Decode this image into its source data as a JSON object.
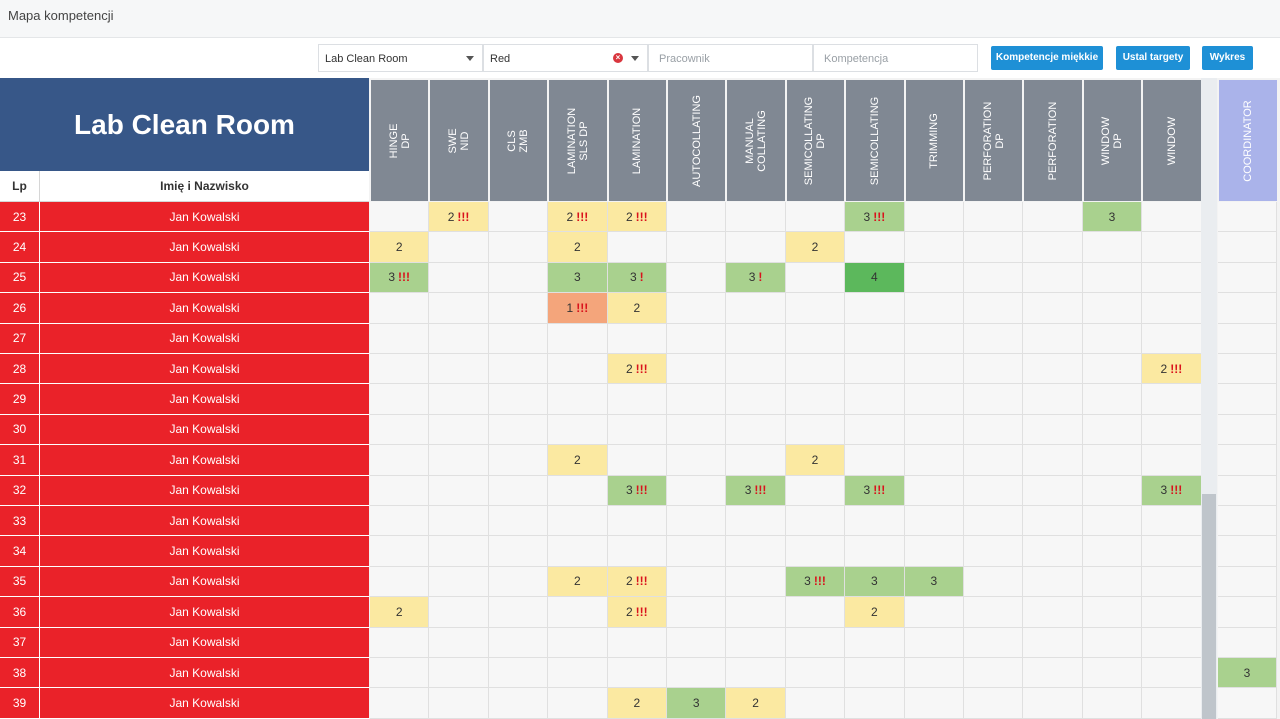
{
  "window": {
    "title": "Mapa kompetencji"
  },
  "filters": {
    "department": "Lab Clean Room",
    "color": "Red",
    "employee_placeholder": "Pracownik",
    "competence_placeholder": "Kompetencja"
  },
  "buttons": {
    "soft": "Kompetencje miękkie",
    "targets": "Ustal targety",
    "chart": "Wykres"
  },
  "table": {
    "title": "Lab Clean Room",
    "lp_header": "Lp",
    "name_header": "Imię i Nazwisko",
    "columns": [
      "HINGE\nDP",
      "SWE\nNID",
      "CLS\nZMB",
      "LAMINATION\nSLS DP",
      "LAMINATION",
      "AUTOCOLLATING",
      "MANUAL\nCOLLATING",
      "SEMICOLLATING\nDP",
      "SEMICOLLATING",
      "TRIMMING",
      "PERFORATION\nDP",
      "PERFORATION",
      "WINDOW\nDP",
      "WINDOW"
    ],
    "coordinator_column": "COORDINATOR",
    "row_color": "#ea2229",
    "level_colors": {
      "1": "#f4a57b",
      "2": "#fbe9a1",
      "3": "#a9d18e",
      "4": "#5cb85c"
    },
    "rows": [
      {
        "lp": "23",
        "name": "Jan Kowalski",
        "cells": [
          {
            "c": 1,
            "v": "2",
            "m": "!!!"
          },
          {
            "c": 3,
            "v": "2",
            "m": "!!!"
          },
          {
            "c": 4,
            "v": "2",
            "m": "!!!"
          },
          {
            "c": 8,
            "v": "3",
            "m": "!!!"
          },
          {
            "c": 12,
            "v": "3"
          }
        ]
      },
      {
        "lp": "24",
        "name": "Jan Kowalski",
        "cells": [
          {
            "c": 0,
            "v": "2"
          },
          {
            "c": 3,
            "v": "2"
          },
          {
            "c": 7,
            "v": "2"
          }
        ]
      },
      {
        "lp": "25",
        "name": "Jan Kowalski",
        "cells": [
          {
            "c": 0,
            "v": "3",
            "m": "!!!"
          },
          {
            "c": 3,
            "v": "3"
          },
          {
            "c": 4,
            "v": "3",
            "m": "!"
          },
          {
            "c": 6,
            "v": "3",
            "m": "!"
          },
          {
            "c": 8,
            "v": "4"
          }
        ]
      },
      {
        "lp": "26",
        "name": "Jan Kowalski",
        "cells": [
          {
            "c": 3,
            "v": "1",
            "m": "!!!"
          },
          {
            "c": 4,
            "v": "2"
          }
        ]
      },
      {
        "lp": "27",
        "name": "Jan Kowalski",
        "cells": []
      },
      {
        "lp": "28",
        "name": "Jan Kowalski",
        "cells": [
          {
            "c": 4,
            "v": "2",
            "m": "!!!"
          },
          {
            "c": 13,
            "v": "2",
            "m": "!!!"
          }
        ]
      },
      {
        "lp": "29",
        "name": "Jan Kowalski",
        "cells": []
      },
      {
        "lp": "30",
        "name": "Jan Kowalski",
        "cells": []
      },
      {
        "lp": "31",
        "name": "Jan Kowalski",
        "cells": [
          {
            "c": 3,
            "v": "2"
          },
          {
            "c": 7,
            "v": "2"
          }
        ]
      },
      {
        "lp": "32",
        "name": "Jan Kowalski",
        "cells": [
          {
            "c": 4,
            "v": "3",
            "m": "!!!"
          },
          {
            "c": 6,
            "v": "3",
            "m": "!!!"
          },
          {
            "c": 8,
            "v": "3",
            "m": "!!!"
          },
          {
            "c": 13,
            "v": "3",
            "m": "!!!"
          }
        ]
      },
      {
        "lp": "33",
        "name": "Jan Kowalski",
        "cells": []
      },
      {
        "lp": "34",
        "name": "Jan Kowalski",
        "cells": []
      },
      {
        "lp": "35",
        "name": "Jan Kowalski",
        "cells": [
          {
            "c": 3,
            "v": "2"
          },
          {
            "c": 4,
            "v": "2",
            "m": "!!!"
          },
          {
            "c": 7,
            "v": "3",
            "m": "!!!"
          },
          {
            "c": 8,
            "v": "3"
          },
          {
            "c": 9,
            "v": "3"
          }
        ]
      },
      {
        "lp": "36",
        "name": "Jan Kowalski",
        "cells": [
          {
            "c": 0,
            "v": "2"
          },
          {
            "c": 4,
            "v": "2",
            "m": "!!!"
          },
          {
            "c": 8,
            "v": "2"
          }
        ]
      },
      {
        "lp": "37",
        "name": "Jan Kowalski",
        "cells": []
      },
      {
        "lp": "38",
        "name": "Jan Kowalski",
        "cells": [],
        "coord": "3"
      },
      {
        "lp": "39",
        "name": "Jan Kowalski",
        "cells": [
          {
            "c": 4,
            "v": "2"
          },
          {
            "c": 5,
            "v": "3"
          },
          {
            "c": 6,
            "v": "2"
          }
        ]
      }
    ]
  }
}
